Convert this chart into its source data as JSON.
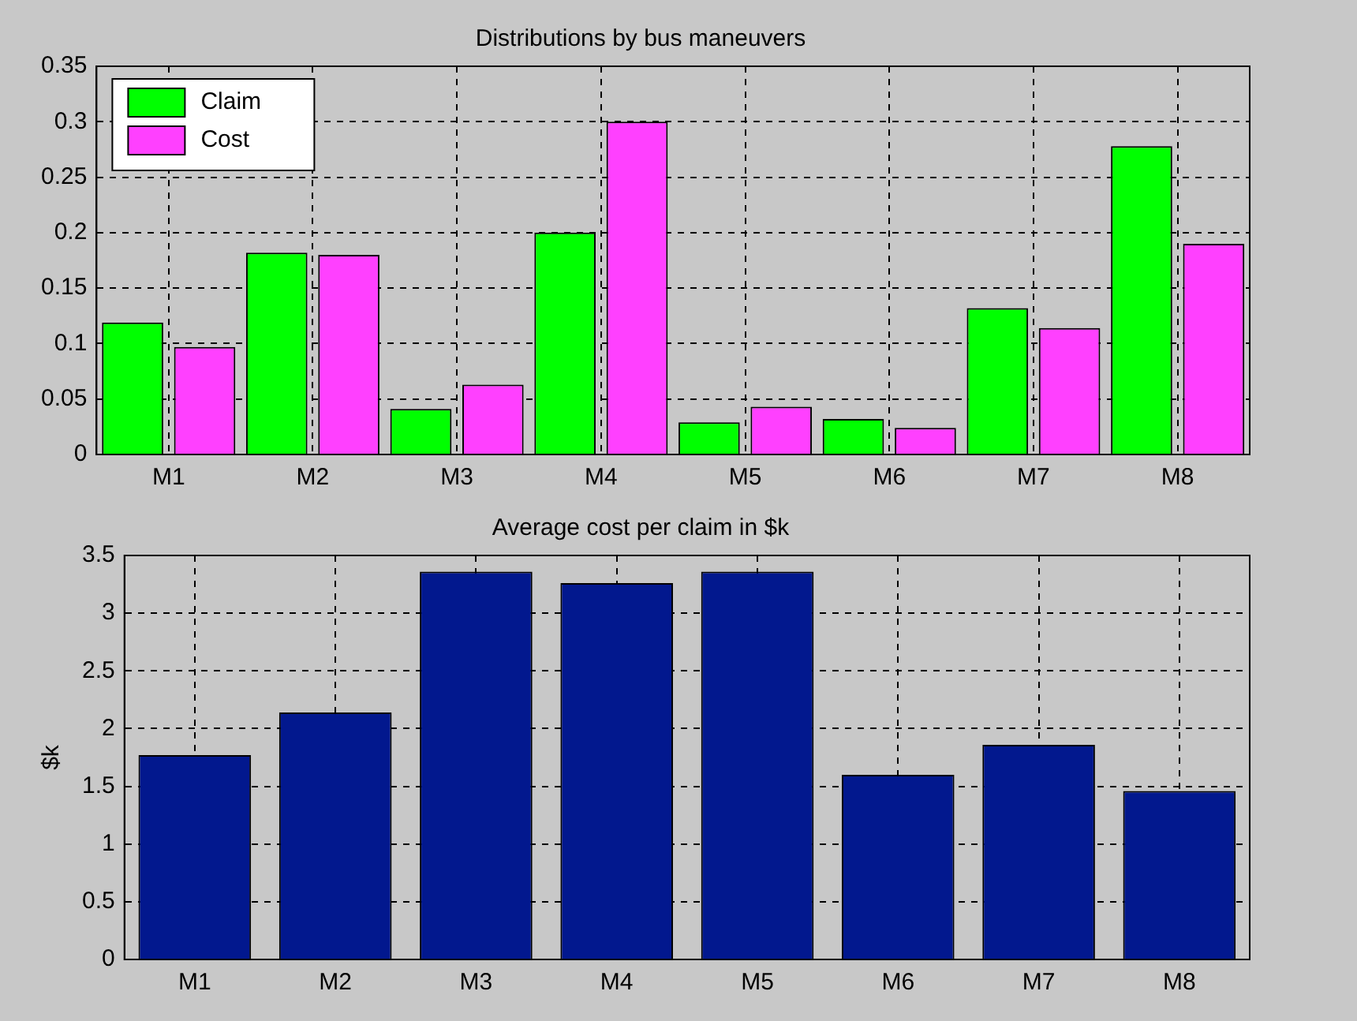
{
  "chart_data": [
    {
      "type": "bar",
      "title": "Distributions by bus maneuvers",
      "categories": [
        "M1",
        "M2",
        "M3",
        "M4",
        "M5",
        "M6",
        "M7",
        "M8"
      ],
      "series": [
        {
          "name": "Claim",
          "color": "#00ff00",
          "values": [
            0.119,
            0.182,
            0.041,
            0.2,
            0.029,
            0.032,
            0.132,
            0.278
          ]
        },
        {
          "name": "Cost",
          "color": "#ff40ff",
          "values": [
            0.097,
            0.18,
            0.063,
            0.3,
            0.043,
            0.024,
            0.114,
            0.19
          ]
        }
      ],
      "ylim": [
        0,
        0.35
      ],
      "yticks": [
        0,
        0.05,
        0.1,
        0.15,
        0.2,
        0.25,
        0.3,
        0.35
      ],
      "grid": true,
      "legend": "top left"
    },
    {
      "type": "bar",
      "title": "Average cost per claim in $k",
      "ylabel": "$k",
      "categories": [
        "M1",
        "M2",
        "M3",
        "M4",
        "M5",
        "M6",
        "M7",
        "M8"
      ],
      "values": [
        1.77,
        2.14,
        3.36,
        3.26,
        3.36,
        1.6,
        1.86,
        1.46
      ],
      "color": "#02188e",
      "ylim": [
        0,
        3.5
      ],
      "yticks": [
        0,
        0.5,
        1,
        1.5,
        2,
        2.5,
        3,
        3.5
      ],
      "grid": true
    }
  ]
}
